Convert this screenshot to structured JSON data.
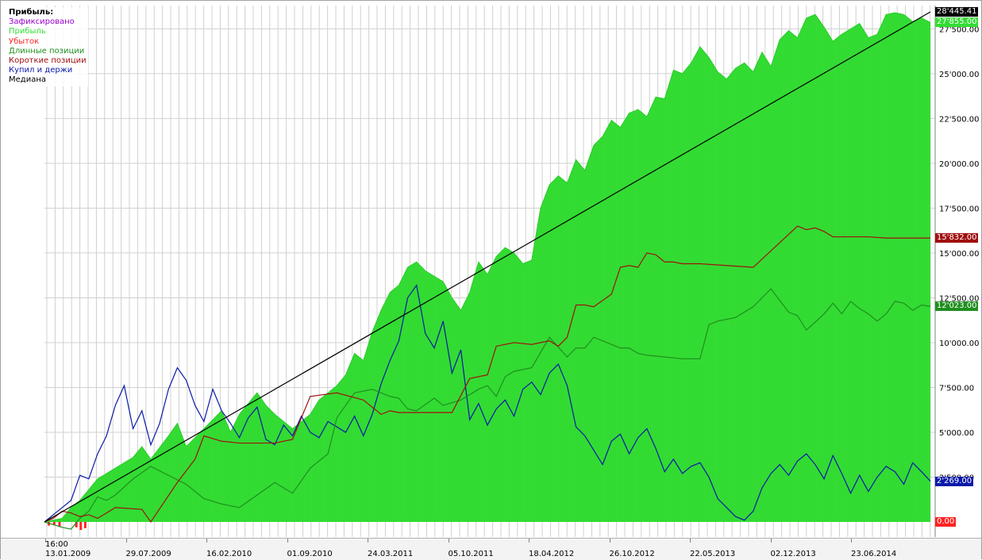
{
  "legend": {
    "title": "Прибыль:",
    "items": [
      {
        "label": "Зафиксировано",
        "color": "#9900cc"
      },
      {
        "label": "Прибыль",
        "color": "#33dd33"
      },
      {
        "label": "Убыток",
        "color": "#ff2222"
      },
      {
        "label": "Длинные позиции",
        "color": "#1f8f1f"
      },
      {
        "label": "Короткие позиции",
        "color": "#a01010"
      },
      {
        "label": "Купил и держи",
        "color": "#0a1aa8"
      },
      {
        "label": "Медиана",
        "color": "#000000"
      }
    ]
  },
  "chart_data": {
    "type": "area",
    "x_axis": {
      "first_label_time": "16:00",
      "tick_labels": [
        "13.01.2009",
        "29.07.2009",
        "16.02.2010",
        "01.09.2010",
        "24.03.2011",
        "05.10.2011",
        "18.04.2012",
        "26.10.2012",
        "22.05.2013",
        "02.12.2013",
        "23.06.2014"
      ]
    },
    "y_axis": {
      "position": "right",
      "ylim": [
        -500,
        29000
      ],
      "tick_values": [
        2500,
        5000,
        7500,
        10000,
        12500,
        15000,
        17500,
        20000,
        22500,
        25000,
        27500
      ],
      "tick_labels": [
        "2'500.00",
        "5'000.00",
        "7'500.00",
        "10'000.00",
        "12'500.00",
        "15'000.00",
        "17'500.00",
        "20'000.00",
        "22'500.00",
        "25'000.00",
        "27'500.00"
      ]
    },
    "grid": true,
    "legend_position": "top-left",
    "value_tags": [
      {
        "text": "28'445.41",
        "value": 28445.41,
        "color": "#000000"
      },
      {
        "text": "27'855.00",
        "value": 27855.0,
        "color": "#33dd33"
      },
      {
        "text": "15'832.00",
        "value": 15832.0,
        "color": "#a01010"
      },
      {
        "text": "12'023.00",
        "value": 12023.0,
        "color": "#1f8f1f"
      },
      {
        "text": "2'269.00",
        "value": 2269.0,
        "color": "#0a1aa8"
      },
      {
        "text": "0.00",
        "value": 0.0,
        "color": "#ff2222"
      }
    ],
    "series": [
      {
        "name": "Прибыль",
        "kind": "area",
        "color": "#33dd33",
        "x": [
          0,
          0.02,
          0.03,
          0.04,
          0.05,
          0.06,
          0.08,
          0.1,
          0.11,
          0.12,
          0.14,
          0.15,
          0.16,
          0.18,
          0.2,
          0.21,
          0.22,
          0.24,
          0.25,
          0.26,
          0.28,
          0.3,
          0.31,
          0.33,
          0.34,
          0.35,
          0.36,
          0.37,
          0.38,
          0.39,
          0.4,
          0.41,
          0.42,
          0.43,
          0.45,
          0.46,
          0.47,
          0.48,
          0.49,
          0.5,
          0.51,
          0.52,
          0.53,
          0.54,
          0.55,
          0.56,
          0.57,
          0.58,
          0.59,
          0.6,
          0.61,
          0.62,
          0.63,
          0.64,
          0.65,
          0.66,
          0.67,
          0.68,
          0.69,
          0.7,
          0.71,
          0.72,
          0.73,
          0.74,
          0.75,
          0.76,
          0.77,
          0.78,
          0.79,
          0.8,
          0.81,
          0.82,
          0.83,
          0.84,
          0.85,
          0.86,
          0.87,
          0.88,
          0.89,
          0.9,
          0.91,
          0.92,
          0.93,
          0.94,
          0.95,
          0.96,
          0.97,
          0.98,
          0.99,
          1.0
        ],
        "values": [
          0,
          200,
          800,
          1200,
          1800,
          2400,
          3000,
          3600,
          4200,
          3500,
          4800,
          5500,
          4200,
          5200,
          6200,
          5000,
          6000,
          7200,
          6500,
          6000,
          5200,
          6000,
          6800,
          7600,
          8200,
          9400,
          9000,
          10600,
          11800,
          12800,
          13200,
          14200,
          14500,
          14000,
          13400,
          12500,
          11800,
          12800,
          14500,
          13800,
          14800,
          15300,
          15000,
          14400,
          14600,
          17500,
          18800,
          19300,
          18900,
          20200,
          19600,
          21000,
          21500,
          22400,
          22000,
          22800,
          23000,
          22600,
          23700,
          23600,
          25200,
          25000,
          25600,
          26500,
          25900,
          25100,
          24700,
          25300,
          25600,
          25100,
          26200,
          25400,
          26900,
          27400,
          27000,
          28100,
          28300,
          27600,
          26800,
          27200,
          27500,
          27800,
          27000,
          27200,
          28300,
          28400,
          28300,
          27900,
          28100,
          27855
        ]
      },
      {
        "name": "Убыток",
        "kind": "bar",
        "color": "#ff2222",
        "x": [
          0.005,
          0.011,
          0.017,
          0.036,
          0.041,
          0.046
        ],
        "values": [
          -200,
          -150,
          -250,
          -300,
          -450,
          -350
        ]
      },
      {
        "name": "Купил и держи",
        "kind": "line",
        "color": "#0a1aa8",
        "x": [
          0,
          0.01,
          0.02,
          0.03,
          0.04,
          0.05,
          0.06,
          0.07,
          0.08,
          0.09,
          0.1,
          0.11,
          0.12,
          0.13,
          0.14,
          0.15,
          0.16,
          0.17,
          0.18,
          0.19,
          0.2,
          0.21,
          0.22,
          0.23,
          0.24,
          0.25,
          0.26,
          0.27,
          0.28,
          0.29,
          0.3,
          0.31,
          0.32,
          0.33,
          0.34,
          0.35,
          0.36,
          0.37,
          0.38,
          0.39,
          0.4,
          0.41,
          0.42,
          0.43,
          0.44,
          0.45,
          0.46,
          0.47,
          0.48,
          0.49,
          0.5,
          0.51,
          0.52,
          0.53,
          0.54,
          0.55,
          0.56,
          0.57,
          0.58,
          0.59,
          0.6,
          0.61,
          0.62,
          0.63,
          0.64,
          0.65,
          0.66,
          0.67,
          0.68,
          0.69,
          0.7,
          0.71,
          0.72,
          0.73,
          0.74,
          0.75,
          0.76,
          0.77,
          0.78,
          0.79,
          0.8,
          0.81,
          0.82,
          0.83,
          0.84,
          0.85,
          0.86,
          0.87,
          0.88,
          0.89,
          0.9,
          0.91,
          0.92,
          0.93,
          0.94,
          0.95,
          0.96,
          0.97,
          0.98,
          0.99,
          1.0
        ],
        "values": [
          0,
          400,
          800,
          1200,
          2600,
          2400,
          3800,
          4800,
          6500,
          7600,
          5200,
          6200,
          4300,
          5500,
          7400,
          8600,
          7900,
          6500,
          5600,
          7400,
          6200,
          5500,
          4700,
          5800,
          6400,
          4600,
          4300,
          5400,
          4800,
          5900,
          5000,
          4700,
          5600,
          5300,
          5000,
          5900,
          4800,
          6000,
          7700,
          9000,
          10100,
          12500,
          13200,
          10500,
          9700,
          11200,
          8300,
          9600,
          5700,
          6600,
          5400,
          6300,
          6800,
          5900,
          7400,
          7800,
          7100,
          8300,
          8800,
          7600,
          5300,
          4800,
          4000,
          3200,
          4500,
          4900,
          3800,
          4700,
          5200,
          4100,
          2800,
          3500,
          2700,
          3100,
          3300,
          2500,
          1300,
          800,
          300,
          100,
          600,
          1900,
          2700,
          3200,
          2600,
          3400,
          3800,
          3200,
          2400,
          3700,
          2700,
          1600,
          2600,
          1700,
          2500,
          3100,
          2800,
          2100,
          3300,
          2800,
          2269
        ]
      },
      {
        "name": "Длинные позиции",
        "kind": "line",
        "color": "#1f8f1f",
        "x": [
          0,
          0.02,
          0.03,
          0.04,
          0.05,
          0.06,
          0.07,
          0.08,
          0.1,
          0.12,
          0.14,
          0.16,
          0.18,
          0.2,
          0.22,
          0.24,
          0.26,
          0.28,
          0.3,
          0.32,
          0.33,
          0.35,
          0.37,
          0.39,
          0.4,
          0.41,
          0.42,
          0.44,
          0.45,
          0.47,
          0.49,
          0.5,
          0.51,
          0.52,
          0.53,
          0.55,
          0.57,
          0.59,
          0.6,
          0.61,
          0.62,
          0.64,
          0.65,
          0.66,
          0.67,
          0.68,
          0.7,
          0.72,
          0.74,
          0.75,
          0.76,
          0.78,
          0.8,
          0.82,
          0.84,
          0.85,
          0.86,
          0.88,
          0.89,
          0.9,
          0.91,
          0.92,
          0.93,
          0.94,
          0.95,
          0.96,
          0.97,
          0.98,
          0.99,
          1.0
        ],
        "values": [
          0,
          -300,
          -400,
          200,
          600,
          1400,
          1200,
          1500,
          2400,
          3100,
          2600,
          2100,
          1300,
          1000,
          800,
          1500,
          2200,
          1600,
          3000,
          3800,
          5800,
          7200,
          7400,
          7000,
          6900,
          6300,
          6200,
          6900,
          6500,
          6800,
          7400,
          7600,
          7000,
          8100,
          8400,
          8600,
          10300,
          9200,
          9700,
          9700,
          10300,
          9900,
          9700,
          9700,
          9400,
          9300,
          9200,
          9100,
          9100,
          11000,
          11200,
          11400,
          12000,
          13000,
          11700,
          11500,
          10700,
          11600,
          12200,
          11600,
          12300,
          11900,
          11600,
          11200,
          11600,
          12300,
          12200,
          11800,
          12100,
          12023
        ]
      },
      {
        "name": "Короткие позиции",
        "kind": "line",
        "color": "#a01010",
        "x": [
          0,
          0.01,
          0.02,
          0.03,
          0.04,
          0.05,
          0.06,
          0.08,
          0.11,
          0.12,
          0.15,
          0.17,
          0.18,
          0.2,
          0.22,
          0.24,
          0.26,
          0.28,
          0.3,
          0.33,
          0.36,
          0.38,
          0.39,
          0.4,
          0.41,
          0.42,
          0.44,
          0.46,
          0.48,
          0.5,
          0.51,
          0.53,
          0.55,
          0.57,
          0.58,
          0.59,
          0.6,
          0.61,
          0.62,
          0.64,
          0.65,
          0.66,
          0.67,
          0.68,
          0.69,
          0.7,
          0.71,
          0.72,
          0.74,
          0.77,
          0.8,
          0.85,
          0.86,
          0.87,
          0.88,
          0.89,
          0.9,
          0.91,
          0.93,
          0.95,
          1.0
        ],
        "values": [
          0,
          200,
          600,
          500,
          300,
          400,
          200,
          800,
          700,
          0,
          2200,
          3500,
          4800,
          4500,
          4400,
          4400,
          4400,
          4600,
          7000,
          7200,
          6800,
          6000,
          6200,
          6100,
          6100,
          6100,
          6100,
          6100,
          8000,
          8200,
          9800,
          10000,
          9900,
          10100,
          9800,
          10300,
          12100,
          12100,
          12000,
          12700,
          14200,
          14300,
          14200,
          15000,
          14900,
          14500,
          14500,
          14400,
          14400,
          14300,
          14200,
          16500,
          16300,
          16400,
          16200,
          15900,
          15900,
          15900,
          15900,
          15832,
          15832
        ]
      },
      {
        "name": "Медиана",
        "kind": "line",
        "color": "#000000",
        "x": [
          0,
          1.0
        ],
        "values": [
          0,
          28445.41
        ]
      }
    ]
  }
}
